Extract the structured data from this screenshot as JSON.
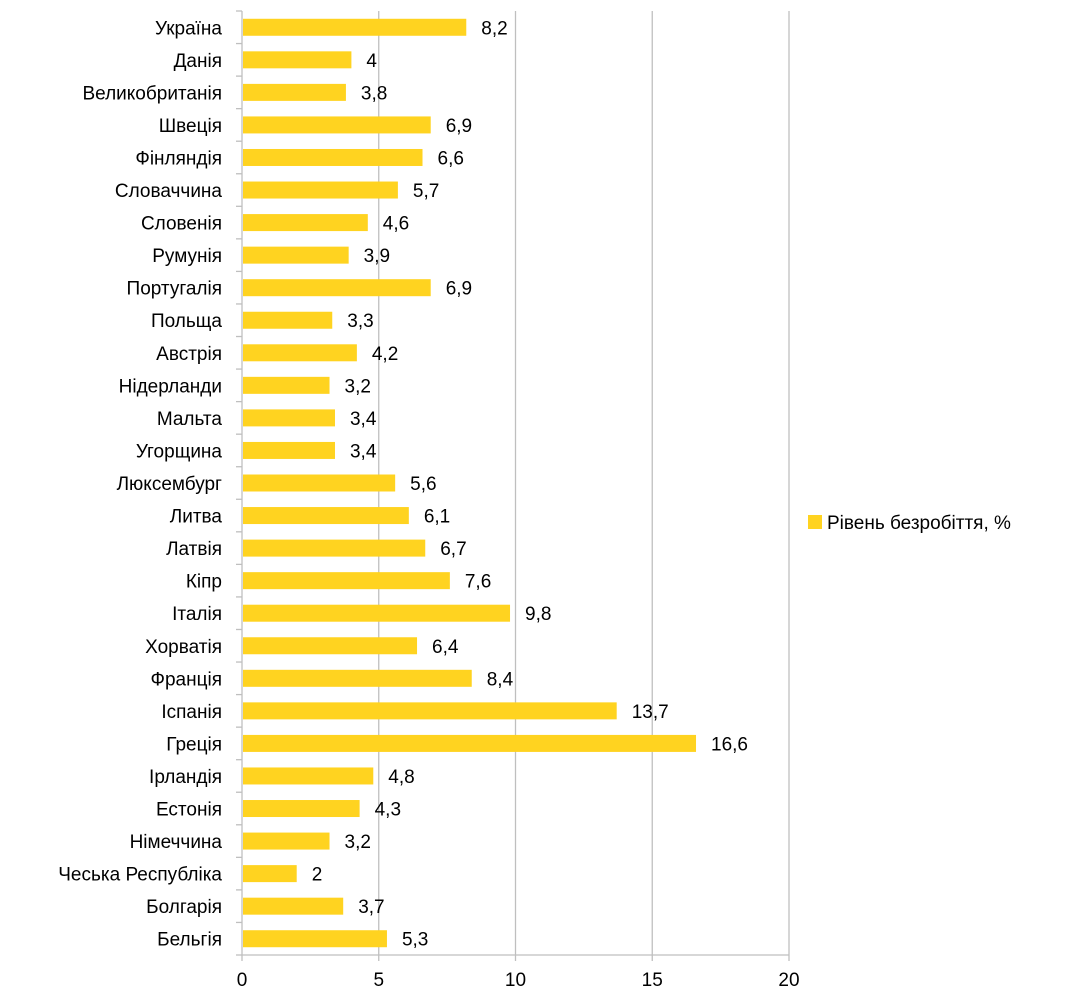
{
  "chart_data": {
    "type": "bar",
    "orientation": "horizontal",
    "categories": [
      "Україна",
      "Данія",
      "Великобританія",
      "Швеція",
      "Фінляндія",
      "Словаччина",
      "Словенія",
      "Румунія",
      "Португалія",
      "Польща",
      "Австрія",
      "Нідерланди",
      "Мальта",
      "Угорщина",
      "Люксембург",
      "Литва",
      "Латвія",
      "Кіпр",
      "Італія",
      "Хорватія",
      "Франція",
      "Іспанія",
      "Греція",
      "Ірландія",
      "Естонія",
      "Німеччина",
      "Чеська Республіка",
      "Болгарія",
      "Бельгія"
    ],
    "values": [
      8.2,
      4,
      3.8,
      6.9,
      6.6,
      5.7,
      4.6,
      3.9,
      6.9,
      3.3,
      4.2,
      3.2,
      3.4,
      3.4,
      5.6,
      6.1,
      6.7,
      7.6,
      9.8,
      6.4,
      8.4,
      13.7,
      16.6,
      4.8,
      4.3,
      3.2,
      2,
      3.7,
      5.3
    ],
    "value_labels": [
      "8,2",
      "4",
      "3,8",
      "6,9",
      "6,6",
      "5,7",
      "4,6",
      "3,9",
      "6,9",
      "3,3",
      "4,2",
      "3,2",
      "3,4",
      "3,4",
      "5,6",
      "6,1",
      "6,7",
      "7,6",
      "9,8",
      "6,4",
      "8,4",
      "13,7",
      "16,6",
      "4,8",
      "4,3",
      "3,2",
      "2",
      "3,7",
      "5,3"
    ],
    "series": [
      {
        "name": "Рівень безробіття, %"
      }
    ],
    "xlim": [
      0,
      20
    ],
    "xticks": [
      0,
      5,
      10,
      15,
      20
    ],
    "xtick_labels": [
      "0",
      "5",
      "10",
      "15",
      "20"
    ],
    "grid": true,
    "legend": "right",
    "colors": {
      "bar": "#FFD320",
      "grid": "#BFBFBF",
      "axis": "#BFBFBF",
      "text": "#000000"
    }
  }
}
